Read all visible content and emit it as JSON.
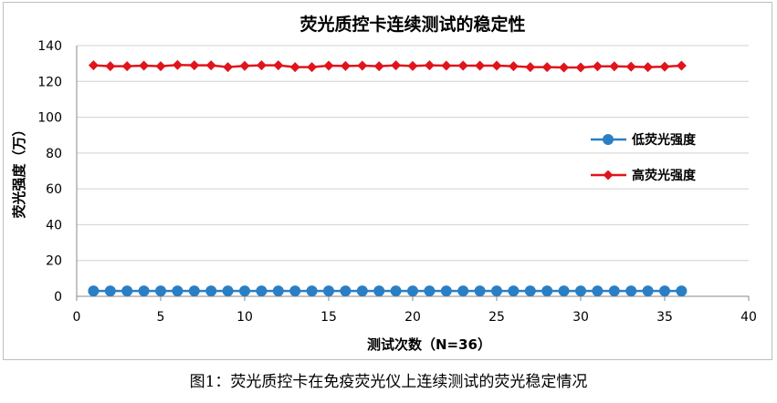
{
  "caption": "图1：荧光质控卡在免疫荧光仪上连续测试的荧光稳定情况",
  "colors": {
    "low": "#2a7fc4",
    "high": "#e0141b",
    "grid": "#d0d0d0",
    "axis": "#888888"
  },
  "chart_data": {
    "type": "line",
    "title": "荧光质控卡连续测试的稳定性",
    "xlabel": "测试次数（N=36）",
    "ylabel": "荧光强度（万）",
    "xlim": [
      0,
      40
    ],
    "ylim": [
      0,
      140
    ],
    "xticks": [
      0,
      5,
      10,
      15,
      20,
      25,
      30,
      35,
      40
    ],
    "yticks": [
      0,
      20,
      40,
      60,
      80,
      100,
      120,
      140
    ],
    "grid": true,
    "legend_position": "right",
    "x": [
      1,
      2,
      3,
      4,
      5,
      6,
      7,
      8,
      9,
      10,
      11,
      12,
      13,
      14,
      15,
      16,
      17,
      18,
      19,
      20,
      21,
      22,
      23,
      24,
      25,
      26,
      27,
      28,
      29,
      30,
      31,
      32,
      33,
      34,
      35,
      36
    ],
    "series": [
      {
        "name": "低荧光强度",
        "marker": "circle",
        "values": [
          3,
          3,
          3,
          3,
          3,
          3,
          3,
          3,
          3,
          3,
          3,
          3,
          3,
          3,
          3,
          3,
          3,
          3,
          3,
          3,
          3,
          3,
          3,
          3,
          3,
          3,
          3,
          3,
          3,
          3,
          3,
          3,
          3,
          3,
          3,
          3
        ]
      },
      {
        "name": "高荧光强度",
        "marker": "diamond",
        "values": [
          129,
          128.5,
          128.5,
          128.8,
          128.5,
          129.2,
          129,
          129,
          128,
          128.7,
          129,
          129,
          128,
          128,
          128.8,
          128.6,
          128.8,
          128.5,
          129,
          128.6,
          129,
          128.8,
          128.8,
          128.8,
          128.8,
          128.5,
          128,
          128,
          127.8,
          127.8,
          128.4,
          128.4,
          128.2,
          128,
          128.2,
          128.8
        ]
      }
    ]
  }
}
